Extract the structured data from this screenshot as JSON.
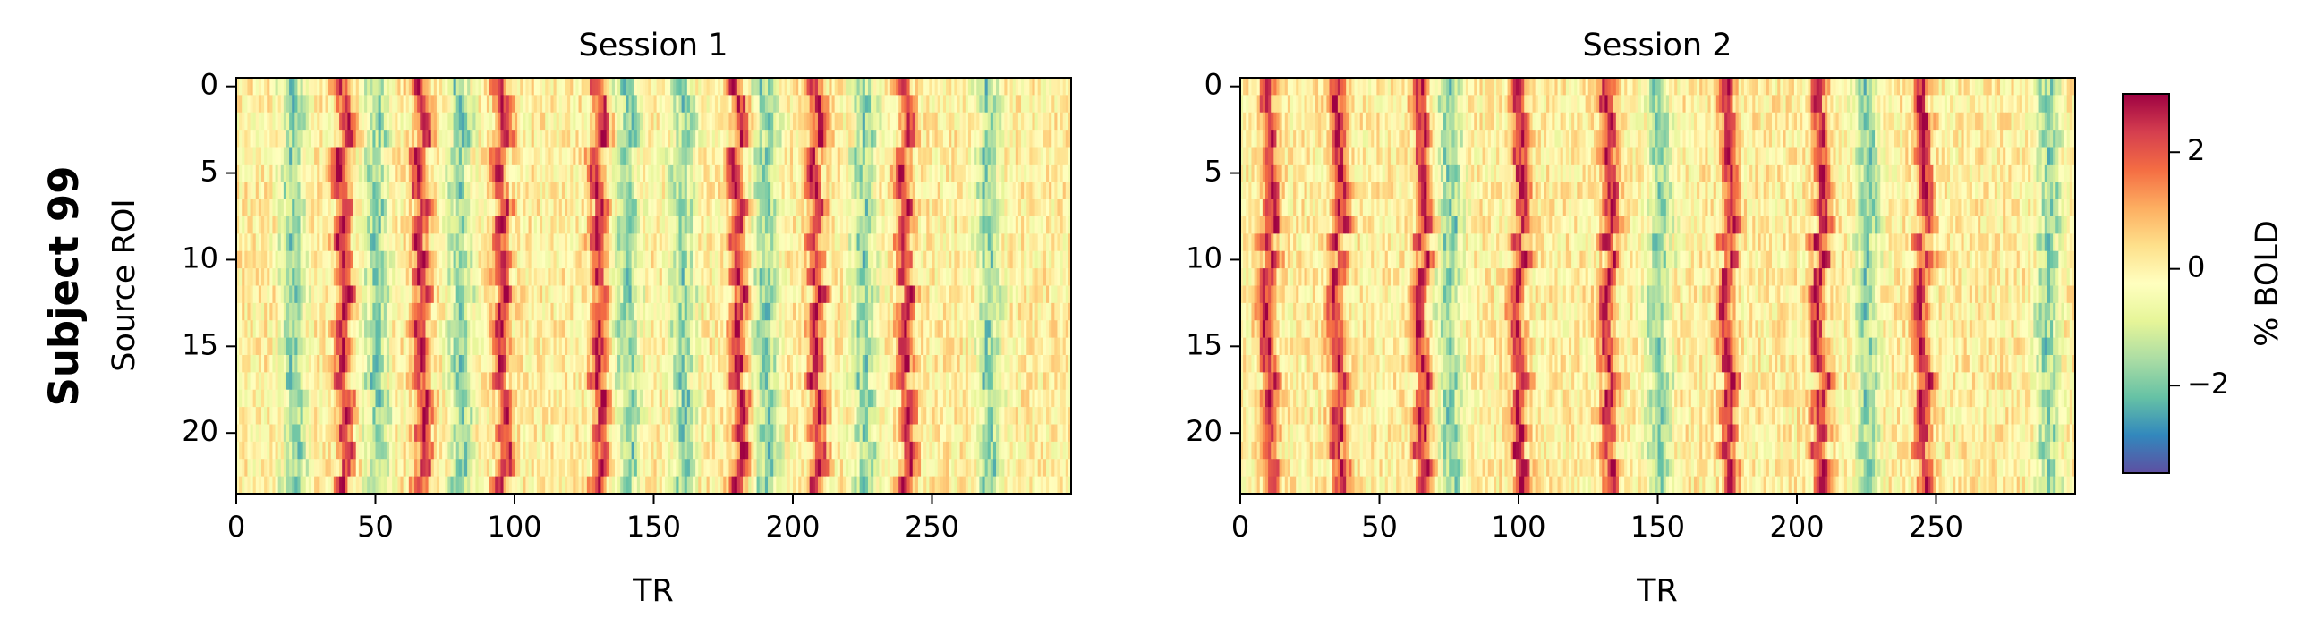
{
  "figure_label": "Subject 99",
  "chart_data": [
    {
      "type": "heatmap",
      "title": "Session 1",
      "xlabel": "TR",
      "ylabel": "Source ROI",
      "x_range": [
        0,
        300
      ],
      "y_range": [
        0,
        24
      ],
      "n_rows": 24,
      "n_cols": 300,
      "xticks": [
        0,
        50,
        100,
        150,
        200,
        250
      ],
      "yticks": [
        0,
        5,
        10,
        15,
        20
      ],
      "y_inverted": true,
      "peak_tr": [
        38,
        66,
        95,
        130,
        180,
        208,
        240
      ],
      "trough_tr": [
        20,
        50,
        80,
        140,
        160,
        190,
        225,
        270
      ]
    },
    {
      "type": "heatmap",
      "title": "Session 2",
      "xlabel": "TR",
      "ylabel": "",
      "x_range": [
        0,
        300
      ],
      "y_range": [
        0,
        24
      ],
      "n_rows": 24,
      "n_cols": 300,
      "xticks": [
        0,
        50,
        100,
        150,
        200,
        250
      ],
      "yticks": [
        0,
        5,
        10,
        15,
        20
      ],
      "y_inverted": true,
      "peak_tr": [
        10,
        35,
        65,
        100,
        132,
        175,
        208,
        245
      ],
      "trough_tr": [
        75,
        150,
        225,
        290
      ]
    }
  ],
  "colorbar": {
    "label": "% BOLD",
    "colormap": "Spectral_r",
    "range": [
      -3.5,
      3
    ],
    "ticks": [
      -2,
      0,
      2
    ],
    "tick_labels": [
      "−2",
      "0",
      "2"
    ],
    "colors": [
      "#5e4fa2",
      "#3288bd",
      "#66c2a5",
      "#abdda4",
      "#e6f598",
      "#ffffbf",
      "#fee08b",
      "#fdae61",
      "#f46d43",
      "#d53e4f",
      "#9e0142"
    ]
  }
}
